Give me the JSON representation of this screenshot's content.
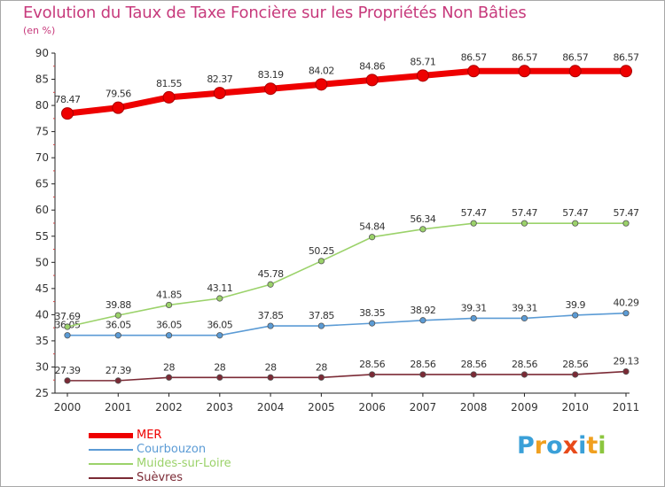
{
  "title": "Evolution du Taux de Taxe Foncière sur les Propriétés Non Bâties",
  "unit_label": "(en %)",
  "logo": {
    "text": "Proxiti",
    "letters": [
      {
        "ch": "P",
        "color": "#3aa0d8"
      },
      {
        "ch": "r",
        "color": "#f0a020"
      },
      {
        "ch": "o",
        "color": "#3aa0d8"
      },
      {
        "ch": "x",
        "color": "#e84a1a"
      },
      {
        "ch": "i",
        "color": "#3aa0d8"
      },
      {
        "ch": "t",
        "color": "#f0a020"
      },
      {
        "ch": "i",
        "color": "#8cc63f"
      }
    ]
  },
  "chart_data": {
    "type": "line",
    "x": [
      "2000",
      "2001",
      "2002",
      "2003",
      "2004",
      "2005",
      "2006",
      "2007",
      "2008",
      "2009",
      "2010",
      "2011"
    ],
    "ylim": [
      25,
      90
    ],
    "yticks": [
      25,
      30,
      35,
      40,
      45,
      50,
      55,
      60,
      65,
      70,
      75,
      80,
      85,
      90
    ],
    "grid": false,
    "legend_position": "bottom-left",
    "series": [
      {
        "name": "MER",
        "color": "#ee0000",
        "values": [
          78.47,
          79.56,
          81.55,
          82.37,
          83.19,
          84.02,
          84.86,
          85.71,
          86.57,
          86.57,
          86.57,
          86.57
        ],
        "labels": [
          "78.47",
          "79.56",
          "81.55",
          "82.37",
          "83.19",
          "84.02",
          "84.86",
          "85.71",
          "86.57",
          "86.57",
          "86.57",
          "86.57"
        ]
      },
      {
        "name": "Courbouzon",
        "color": "#5b9bd5",
        "values": [
          36.05,
          36.05,
          36.05,
          36.05,
          37.85,
          37.85,
          38.35,
          38.92,
          39.31,
          39.31,
          39.9,
          40.29
        ],
        "labels": [
          "36.05",
          "36.05",
          "36.05",
          "36.05",
          "37.85",
          "37.85",
          "38.35",
          "38.92",
          "39.31",
          "39.31",
          "39.9",
          "40.29"
        ]
      },
      {
        "name": "Muides-sur-Loire",
        "color": "#9bd26a",
        "values": [
          37.69,
          39.88,
          41.85,
          43.11,
          45.78,
          50.25,
          54.84,
          56.34,
          57.47,
          57.47,
          57.47,
          57.47
        ],
        "labels": [
          "37.69",
          "39.88",
          "41.85",
          "43.11",
          "45.78",
          "50.25",
          "54.84",
          "56.34",
          "57.47",
          "57.47",
          "57.47",
          "57.47"
        ]
      },
      {
        "name": "Suèvres",
        "color": "#7b2a35",
        "values": [
          27.39,
          27.39,
          28,
          28,
          28,
          28,
          28.56,
          28.56,
          28.56,
          28.56,
          28.56,
          29.13
        ],
        "labels": [
          "27.39",
          "27.39",
          "28",
          "28",
          "28",
          "28",
          "28.56",
          "28.56",
          "28.56",
          "28.56",
          "28.56",
          "29.13"
        ]
      }
    ]
  }
}
